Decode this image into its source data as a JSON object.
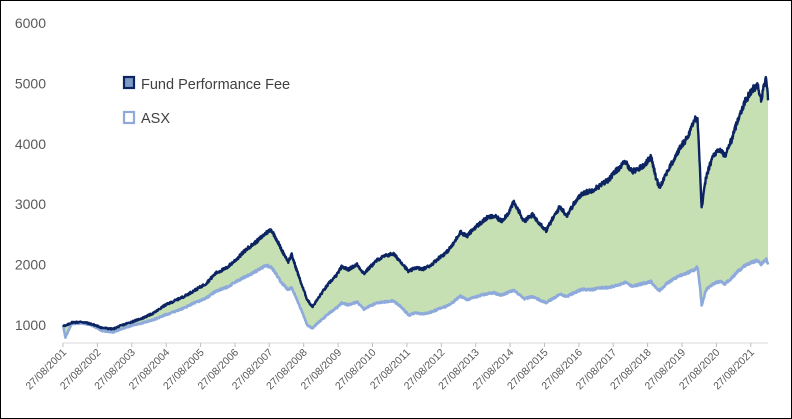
{
  "chart_data": {
    "type": "line",
    "title": "",
    "xlabel": "",
    "ylabel": "",
    "ylim": [
      700,
      6000
    ],
    "yticks": [
      1000,
      2000,
      3000,
      4000,
      5000,
      6000
    ],
    "grid": false,
    "legend_position": "top-left",
    "fill_between_series": true,
    "xlim_years": [
      2001.65,
      2022.15
    ],
    "x_tick_labels": [
      "27/08/2001",
      "27/08/2002",
      "27/08/2003",
      "27/08/2004",
      "27/08/2005",
      "27/08/2006",
      "27/08/2007",
      "27/08/2008",
      "27/08/2009",
      "27/08/2010",
      "27/08/2011",
      "27/08/2012",
      "27/08/2013",
      "27/08/2014",
      "27/08/2015",
      "27/08/2016",
      "27/08/2017",
      "27/08/2018",
      "27/08/2019",
      "27/08/2020",
      "27/08/2021"
    ],
    "x_tick_years": [
      2001.65,
      2002.65,
      2003.65,
      2004.65,
      2005.65,
      2006.65,
      2007.65,
      2008.65,
      2009.65,
      2010.65,
      2011.65,
      2012.65,
      2013.65,
      2014.65,
      2015.65,
      2016.65,
      2017.65,
      2018.65,
      2019.65,
      2020.65,
      2021.65
    ],
    "series": [
      {
        "name": "Fund Performance Fee",
        "color": "#0c2461",
        "points": [
          [
            2001.65,
            1000
          ],
          [
            2001.72,
            980
          ],
          [
            2001.9,
            1040
          ],
          [
            2002.2,
            1050
          ],
          [
            2002.5,
            1010
          ],
          [
            2002.8,
            950
          ],
          [
            2003.1,
            930
          ],
          [
            2003.3,
            980
          ],
          [
            2003.6,
            1040
          ],
          [
            2004.0,
            1120
          ],
          [
            2004.3,
            1200
          ],
          [
            2004.6,
            1320
          ],
          [
            2004.9,
            1400
          ],
          [
            2005.2,
            1480
          ],
          [
            2005.5,
            1580
          ],
          [
            2005.8,
            1680
          ],
          [
            2006.1,
            1860
          ],
          [
            2006.4,
            1940
          ],
          [
            2006.7,
            2090
          ],
          [
            2007.0,
            2260
          ],
          [
            2007.3,
            2390
          ],
          [
            2007.55,
            2520
          ],
          [
            2007.7,
            2580
          ],
          [
            2007.85,
            2430
          ],
          [
            2008.0,
            2250
          ],
          [
            2008.2,
            2050
          ],
          [
            2008.3,
            2160
          ],
          [
            2008.45,
            1900
          ],
          [
            2008.6,
            1650
          ],
          [
            2008.75,
            1420
          ],
          [
            2008.9,
            1300
          ],
          [
            2009.0,
            1380
          ],
          [
            2009.2,
            1550
          ],
          [
            2009.4,
            1700
          ],
          [
            2009.6,
            1820
          ],
          [
            2009.75,
            1960
          ],
          [
            2009.95,
            1920
          ],
          [
            2010.2,
            2000
          ],
          [
            2010.4,
            1850
          ],
          [
            2010.6,
            1970
          ],
          [
            2010.8,
            2080
          ],
          [
            2011.0,
            2140
          ],
          [
            2011.25,
            2180
          ],
          [
            2011.5,
            2030
          ],
          [
            2011.7,
            1880
          ],
          [
            2011.9,
            1950
          ],
          [
            2012.1,
            1920
          ],
          [
            2012.35,
            1990
          ],
          [
            2012.6,
            2120
          ],
          [
            2012.8,
            2200
          ],
          [
            2013.0,
            2340
          ],
          [
            2013.2,
            2540
          ],
          [
            2013.4,
            2470
          ],
          [
            2013.6,
            2600
          ],
          [
            2013.8,
            2690
          ],
          [
            2014.0,
            2780
          ],
          [
            2014.2,
            2800
          ],
          [
            2014.4,
            2720
          ],
          [
            2014.6,
            2850
          ],
          [
            2014.75,
            3030
          ],
          [
            2014.9,
            2890
          ],
          [
            2015.05,
            2720
          ],
          [
            2015.3,
            2820
          ],
          [
            2015.55,
            2660
          ],
          [
            2015.7,
            2560
          ],
          [
            2015.85,
            2720
          ],
          [
            2016.1,
            2960
          ],
          [
            2016.3,
            2810
          ],
          [
            2016.5,
            3000
          ],
          [
            2016.75,
            3180
          ],
          [
            2017.0,
            3220
          ],
          [
            2017.25,
            3300
          ],
          [
            2017.5,
            3400
          ],
          [
            2017.75,
            3560
          ],
          [
            2018.0,
            3700
          ],
          [
            2018.2,
            3540
          ],
          [
            2018.5,
            3620
          ],
          [
            2018.75,
            3780
          ],
          [
            2018.9,
            3420
          ],
          [
            2019.0,
            3280
          ],
          [
            2019.2,
            3520
          ],
          [
            2019.4,
            3720
          ],
          [
            2019.6,
            3940
          ],
          [
            2019.8,
            4100
          ],
          [
            2020.0,
            4380
          ],
          [
            2020.1,
            4450
          ],
          [
            2020.17,
            3600
          ],
          [
            2020.22,
            2930
          ],
          [
            2020.35,
            3450
          ],
          [
            2020.55,
            3800
          ],
          [
            2020.75,
            3900
          ],
          [
            2020.9,
            3800
          ],
          [
            2021.1,
            4080
          ],
          [
            2021.3,
            4450
          ],
          [
            2021.5,
            4720
          ],
          [
            2021.7,
            4900
          ],
          [
            2021.85,
            4980
          ],
          [
            2021.95,
            4720
          ],
          [
            2022.05,
            5000
          ],
          [
            2022.1,
            5100
          ],
          [
            2022.15,
            4720
          ]
        ]
      },
      {
        "name": "ASX",
        "color": "#8eaadb",
        "points": [
          [
            2001.65,
            1000
          ],
          [
            2001.72,
            790
          ],
          [
            2001.9,
            1020
          ],
          [
            2002.2,
            1030
          ],
          [
            2002.5,
            990
          ],
          [
            2002.8,
            900
          ],
          [
            2003.1,
            880
          ],
          [
            2003.3,
            920
          ],
          [
            2003.6,
            980
          ],
          [
            2004.0,
            1040
          ],
          [
            2004.3,
            1090
          ],
          [
            2004.6,
            1160
          ],
          [
            2004.9,
            1220
          ],
          [
            2005.2,
            1290
          ],
          [
            2005.5,
            1370
          ],
          [
            2005.8,
            1440
          ],
          [
            2006.1,
            1560
          ],
          [
            2006.4,
            1620
          ],
          [
            2006.7,
            1720
          ],
          [
            2007.0,
            1810
          ],
          [
            2007.3,
            1900
          ],
          [
            2007.55,
            1980
          ],
          [
            2007.7,
            1960
          ],
          [
            2007.85,
            1840
          ],
          [
            2008.0,
            1700
          ],
          [
            2008.2,
            1580
          ],
          [
            2008.3,
            1620
          ],
          [
            2008.45,
            1420
          ],
          [
            2008.6,
            1220
          ],
          [
            2008.75,
            1000
          ],
          [
            2008.9,
            940
          ],
          [
            2009.0,
            1000
          ],
          [
            2009.2,
            1100
          ],
          [
            2009.4,
            1200
          ],
          [
            2009.6,
            1280
          ],
          [
            2009.75,
            1360
          ],
          [
            2009.95,
            1330
          ],
          [
            2010.2,
            1380
          ],
          [
            2010.4,
            1260
          ],
          [
            2010.6,
            1320
          ],
          [
            2010.8,
            1370
          ],
          [
            2011.0,
            1380
          ],
          [
            2011.25,
            1400
          ],
          [
            2011.5,
            1290
          ],
          [
            2011.7,
            1160
          ],
          [
            2011.9,
            1200
          ],
          [
            2012.1,
            1180
          ],
          [
            2012.35,
            1210
          ],
          [
            2012.6,
            1270
          ],
          [
            2012.8,
            1310
          ],
          [
            2013.0,
            1380
          ],
          [
            2013.2,
            1480
          ],
          [
            2013.4,
            1420
          ],
          [
            2013.6,
            1450
          ],
          [
            2013.8,
            1490
          ],
          [
            2014.0,
            1520
          ],
          [
            2014.2,
            1530
          ],
          [
            2014.4,
            1490
          ],
          [
            2014.6,
            1540
          ],
          [
            2014.75,
            1570
          ],
          [
            2014.9,
            1510
          ],
          [
            2015.05,
            1430
          ],
          [
            2015.3,
            1470
          ],
          [
            2015.55,
            1400
          ],
          [
            2015.7,
            1370
          ],
          [
            2015.85,
            1420
          ],
          [
            2016.1,
            1510
          ],
          [
            2016.3,
            1470
          ],
          [
            2016.5,
            1530
          ],
          [
            2016.75,
            1590
          ],
          [
            2017.0,
            1580
          ],
          [
            2017.25,
            1610
          ],
          [
            2017.5,
            1620
          ],
          [
            2017.75,
            1650
          ],
          [
            2018.0,
            1700
          ],
          [
            2018.2,
            1640
          ],
          [
            2018.5,
            1680
          ],
          [
            2018.75,
            1720
          ],
          [
            2018.9,
            1610
          ],
          [
            2019.0,
            1570
          ],
          [
            2019.2,
            1680
          ],
          [
            2019.4,
            1760
          ],
          [
            2019.6,
            1820
          ],
          [
            2019.8,
            1860
          ],
          [
            2020.0,
            1910
          ],
          [
            2020.1,
            1960
          ],
          [
            2020.17,
            1650
          ],
          [
            2020.22,
            1320
          ],
          [
            2020.35,
            1580
          ],
          [
            2020.55,
            1680
          ],
          [
            2020.75,
            1720
          ],
          [
            2020.9,
            1680
          ],
          [
            2021.1,
            1780
          ],
          [
            2021.3,
            1900
          ],
          [
            2021.5,
            1990
          ],
          [
            2021.7,
            2040
          ],
          [
            2021.85,
            2070
          ],
          [
            2021.95,
            2000
          ],
          [
            2022.05,
            2060
          ],
          [
            2022.1,
            2080
          ],
          [
            2022.15,
            2000
          ]
        ]
      }
    ],
    "fill_color": "#c6e0b4"
  },
  "legend": {
    "items": [
      {
        "label": "Fund Performance Fee",
        "border": "#0c2461",
        "fill": "#7f99c5"
      },
      {
        "label": "ASX",
        "border": "#8eaadb",
        "fill": "#ffffff"
      }
    ]
  }
}
